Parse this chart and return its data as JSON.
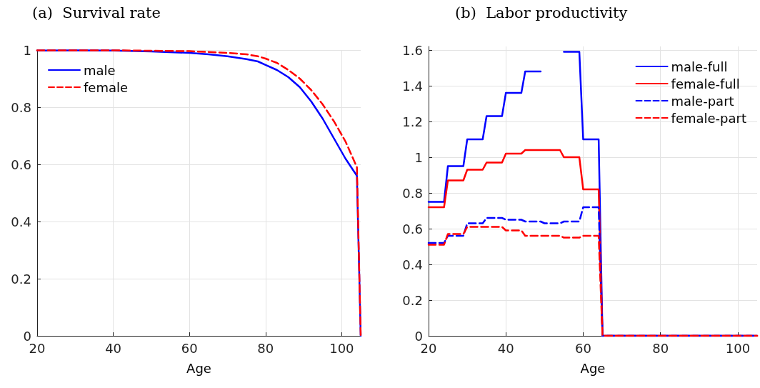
{
  "chart_data": [
    {
      "type": "line",
      "title": "(a)  Survival rate",
      "xlabel": "Age",
      "xlim": [
        20,
        105
      ],
      "xticks": [
        20,
        40,
        60,
        80,
        100
      ],
      "ylim": [
        0,
        1
      ],
      "yticks": [
        0,
        0.2,
        0.4,
        0.6,
        0.8,
        1
      ],
      "grid": true,
      "legend": "top left",
      "marker": "none",
      "series": [
        {
          "name": "male",
          "color": "#0000ff",
          "line_style": "solid",
          "x": [
            20,
            30,
            40,
            50,
            60,
            65,
            70,
            75,
            78,
            80,
            83,
            86,
            89,
            92,
            95,
            98,
            101,
            104,
            105
          ],
          "values": [
            0.998,
            0.999,
            0.998,
            0.995,
            0.99,
            0.985,
            0.978,
            0.968,
            0.96,
            0.948,
            0.93,
            0.905,
            0.87,
            0.82,
            0.76,
            0.69,
            0.62,
            0.56,
            0
          ]
        },
        {
          "name": "female",
          "color": "#ff0000",
          "line_style": "dashed",
          "x": [
            20,
            40,
            60,
            70,
            75,
            78,
            80,
            83,
            86,
            89,
            92,
            95,
            98,
            101,
            104,
            105
          ],
          "values": [
            0.999,
            0.999,
            0.996,
            0.99,
            0.985,
            0.978,
            0.97,
            0.955,
            0.93,
            0.9,
            0.86,
            0.81,
            0.75,
            0.68,
            0.59,
            0
          ]
        }
      ]
    },
    {
      "type": "line",
      "title": "(b)  Labor productivity",
      "xlabel": "Age",
      "xlim": [
        20,
        105
      ],
      "xticks": [
        20,
        40,
        60,
        80,
        100
      ],
      "ylim": [
        0,
        1.62
      ],
      "yticks": [
        0,
        0.2,
        0.4,
        0.6,
        0.8,
        1,
        1.2,
        1.4,
        1.6
      ],
      "grid": true,
      "legend": "top right",
      "marker": "none",
      "x": [
        20,
        24,
        25,
        29,
        30,
        34,
        35,
        39,
        40,
        44,
        45,
        49,
        50,
        54,
        55,
        59,
        60,
        64,
        65,
        105
      ],
      "series": [
        {
          "name": "male-full",
          "color": "#0000ff",
          "line_style": "solid",
          "values": [
            0.75,
            0.75,
            0.95,
            0.95,
            1.1,
            1.1,
            1.23,
            1.23,
            1.36,
            1.36,
            1.48,
            1.48,
            null,
            null,
            1.59,
            1.59,
            1.1,
            1.1,
            0,
            0
          ]
        },
        {
          "name": "female-full",
          "color": "#ff0000",
          "line_style": "solid",
          "values": [
            0.72,
            0.72,
            0.87,
            0.87,
            0.93,
            0.93,
            0.97,
            0.97,
            1.02,
            1.02,
            1.04,
            1.04,
            1.04,
            1.04,
            1,
            1,
            0.82,
            0.82,
            0,
            0
          ]
        },
        {
          "name": "male-part",
          "color": "#0000ff",
          "line_style": "dashed",
          "values": [
            0.52,
            0.52,
            0.56,
            0.56,
            0.63,
            0.63,
            0.66,
            0.66,
            0.65,
            0.65,
            0.64,
            0.64,
            0.63,
            0.63,
            0.64,
            0.64,
            0.72,
            0.72,
            0,
            0
          ]
        },
        {
          "name": "female-part",
          "color": "#ff0000",
          "line_style": "dashed",
          "values": [
            0.51,
            0.51,
            0.57,
            0.57,
            0.61,
            0.61,
            0.61,
            0.61,
            0.59,
            0.59,
            0.56,
            0.56,
            0.56,
            0.56,
            0.55,
            0.55,
            0.56,
            0.56,
            0,
            0
          ]
        }
      ]
    }
  ]
}
